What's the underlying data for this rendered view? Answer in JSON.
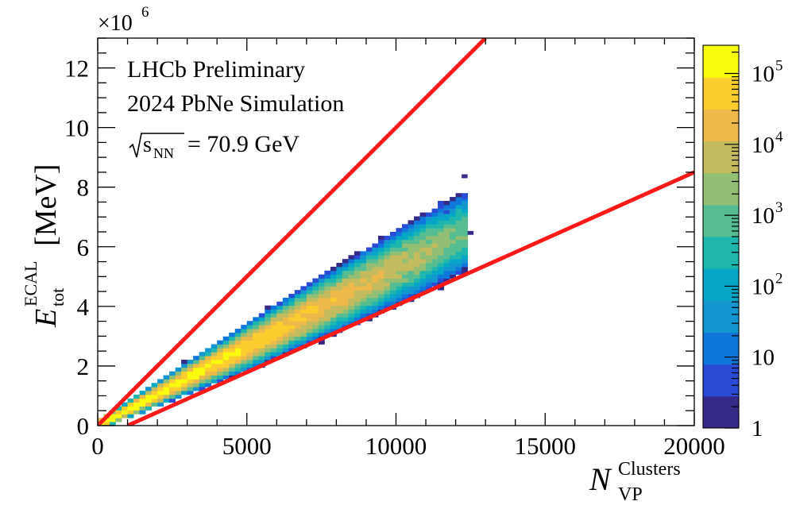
{
  "chart_data": {
    "type": "heatmap",
    "title": "",
    "annotations": {
      "experiment": "LHCb Preliminary",
      "sample": "2024 PbNe Simulation",
      "energy_sym": "s",
      "energy_sub": "NN",
      "energy_value": "= 70.9 GeV"
    },
    "xaxis": {
      "label_main": "N",
      "label_sub": "VP",
      "label_sup": "Clusters",
      "range": [
        0,
        20000
      ],
      "ticks": [
        0,
        5000,
        10000,
        15000,
        20000
      ],
      "tick_labels": [
        "0",
        "5000",
        "10000",
        "15000",
        "20000"
      ],
      "minor_step": 1000
    },
    "yaxis": {
      "label_main": "E",
      "label_sub": "tot",
      "label_sup": "ECAL",
      "unit": "[MeV]",
      "range": [
        0,
        13000000
      ],
      "ticks": [
        0,
        2000000,
        4000000,
        6000000,
        8000000,
        10000000,
        12000000
      ],
      "tick_labels": [
        "0",
        "2",
        "4",
        "6",
        "8",
        "10",
        "12"
      ],
      "exponent": "×10",
      "exponent_power": "6",
      "minor_step": 500000
    },
    "colorbar": {
      "scale": "log",
      "range": [
        1,
        250000
      ],
      "ticks": [
        1,
        10,
        100,
        1000,
        10000,
        100000
      ],
      "tick_labels": [
        {
          "base": "1",
          "exp": ""
        },
        {
          "base": "10",
          "exp": ""
        },
        {
          "base": "10",
          "exp": "2"
        },
        {
          "base": "10",
          "exp": "3"
        },
        {
          "base": "10",
          "exp": "4"
        },
        {
          "base": "10",
          "exp": "5"
        }
      ],
      "colors": [
        "#352a87",
        "#2a4bd6",
        "#0f77db",
        "#1396d0",
        "#06a7c6",
        "#1fb6ad",
        "#55bd91",
        "#92bf74",
        "#c4bb5f",
        "#ecb94a",
        "#fbcd2e",
        "#f9fb0e"
      ]
    },
    "density_model": {
      "ridge_slope_mev_per_cluster": 540,
      "x_extent": [
        0,
        12400
      ],
      "band_fraction_upper": 1.25,
      "band_fraction_lower": 0.72,
      "peak_counts": 200000
    },
    "cut_lines": [
      {
        "name": "upper-cut",
        "color": "#ff1a1a",
        "x1": 0,
        "y1": 0,
        "x2": 13000,
        "y2": 13000000
      },
      {
        "name": "lower-cut",
        "color": "#ff1a1a",
        "x1": 1000,
        "y1": 0,
        "x2": 20000,
        "y2": 8500000
      }
    ],
    "bins": {
      "x_width": 200,
      "y_width": 130000
    }
  }
}
